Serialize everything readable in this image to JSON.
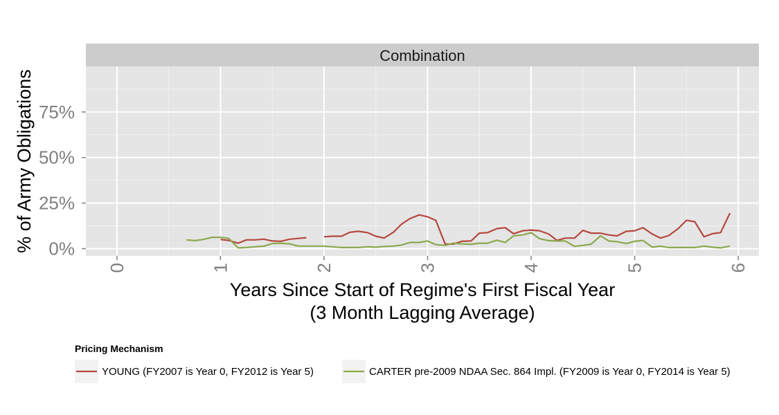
{
  "chart_data": {
    "type": "line",
    "facet_title": "Combination",
    "xlabel_line1": "Years Since Start of Regime's First Fiscal Year",
    "xlabel_line2": "(3 Month Lagging Average)",
    "ylabel": "% of Army Obligations",
    "xlim": [
      -0.3,
      6.2
    ],
    "ylim": [
      -0.04,
      1.0
    ],
    "x_ticks": [
      0,
      1,
      2,
      3,
      4,
      5,
      6
    ],
    "x_tick_labels": [
      "0",
      "1",
      "2",
      "3",
      "4",
      "5",
      "6"
    ],
    "y_ticks": [
      0,
      0.25,
      0.5,
      0.75
    ],
    "y_tick_labels": [
      "0%",
      "25%",
      "50%",
      "75%"
    ],
    "grid": true,
    "legend_position": "bottom",
    "legend_title": "Pricing Mechanism",
    "series": [
      {
        "name": "YOUNG (FY2007 is Year 0, FY2012 is Year 5)",
        "color": "#b5473d",
        "segments": [
          {
            "x": [
              1.0,
              1.08,
              1.17,
              1.25,
              1.33,
              1.42,
              1.5,
              1.58,
              1.67,
              1.75,
              1.83
            ],
            "y": [
              0.05,
              0.045,
              0.03,
              0.048,
              0.048,
              0.052,
              0.042,
              0.04,
              0.052,
              0.056,
              0.06
            ]
          },
          {
            "x": [
              2.0,
              2.08,
              2.17,
              2.25,
              2.33,
              2.42,
              2.5,
              2.58,
              2.67,
              2.75,
              2.83,
              2.92,
              3.0,
              3.08,
              3.17,
              3.25,
              3.33,
              3.42,
              3.5,
              3.58,
              3.67,
              3.75,
              3.83,
              3.92,
              4.0,
              4.08,
              4.17,
              4.25,
              4.33,
              4.42,
              4.5,
              4.58,
              4.67,
              4.75,
              4.83,
              4.92,
              5.0,
              5.08,
              5.17,
              5.25,
              5.33,
              5.42,
              5.5,
              5.58,
              5.67,
              5.75,
              5.83,
              5.92
            ],
            "y": [
              0.065,
              0.068,
              0.068,
              0.09,
              0.095,
              0.088,
              0.068,
              0.058,
              0.09,
              0.135,
              0.165,
              0.185,
              0.175,
              0.155,
              0.025,
              0.025,
              0.04,
              0.042,
              0.085,
              0.088,
              0.11,
              0.115,
              0.082,
              0.098,
              0.102,
              0.098,
              0.08,
              0.045,
              0.058,
              0.058,
              0.1,
              0.085,
              0.085,
              0.075,
              0.07,
              0.095,
              0.098,
              0.115,
              0.08,
              0.058,
              0.072,
              0.11,
              0.155,
              0.148,
              0.065,
              0.082,
              0.088,
              0.195
            ]
          }
        ]
      },
      {
        "name": "CARTER pre-2009 NDAA Sec. 864 Impl. (FY2009 is Year 0, FY2014 is Year 5)",
        "color": "#8ca84d",
        "segments": [
          {
            "x": [
              0.67,
              0.75,
              0.83,
              0.92,
              1.0,
              1.08,
              1.17,
              1.25,
              1.33,
              1.42,
              1.5,
              1.58,
              1.67,
              1.75,
              1.83,
              1.92,
              2.0,
              2.08,
              2.17,
              2.25,
              2.33,
              2.42,
              2.5,
              2.58,
              2.67,
              2.75,
              2.83,
              2.92,
              3.0,
              3.08,
              3.17,
              3.25,
              3.33,
              3.42,
              3.5,
              3.58,
              3.67,
              3.75,
              3.83,
              3.92,
              4.0,
              4.08,
              4.17,
              4.25,
              4.33,
              4.42,
              4.5,
              4.58,
              4.67,
              4.75,
              4.83,
              4.92,
              5.0,
              5.08,
              5.17,
              5.25,
              5.33,
              5.42,
              5.5,
              5.58,
              5.67,
              5.75,
              5.83,
              5.92
            ],
            "y": [
              0.048,
              0.044,
              0.05,
              0.062,
              0.062,
              0.056,
              0.004,
              0.006,
              0.01,
              0.014,
              0.028,
              0.03,
              0.026,
              0.014,
              0.014,
              0.014,
              0.014,
              0.01,
              0.006,
              0.006,
              0.006,
              0.01,
              0.008,
              0.012,
              0.014,
              0.02,
              0.034,
              0.034,
              0.042,
              0.022,
              0.018,
              0.03,
              0.026,
              0.024,
              0.03,
              0.03,
              0.046,
              0.034,
              0.07,
              0.075,
              0.088,
              0.055,
              0.044,
              0.042,
              0.042,
              0.012,
              0.018,
              0.024,
              0.07,
              0.042,
              0.038,
              0.028,
              0.04,
              0.045,
              0.008,
              0.014,
              0.006,
              0.006,
              0.006,
              0.006,
              0.014,
              0.008,
              0.004,
              0.014
            ]
          }
        ]
      }
    ]
  }
}
